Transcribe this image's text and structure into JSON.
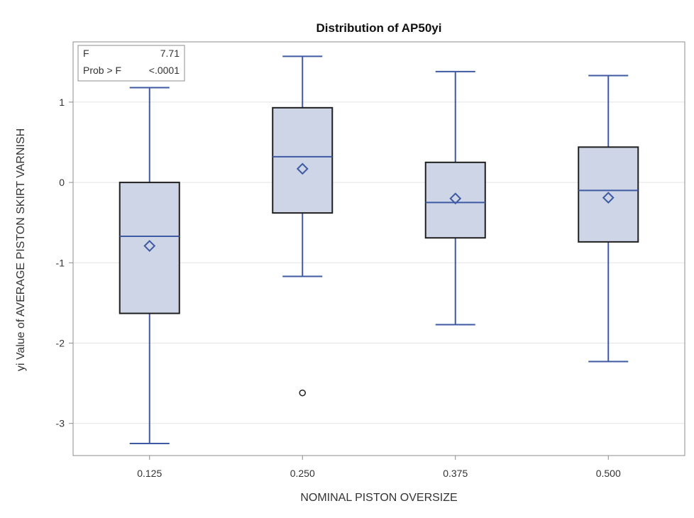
{
  "chart_data": {
    "type": "box",
    "title": "Distribution of AP50yi",
    "xlabel": "NOMINAL PISTON OVERSIZE",
    "ylabel": "yi Value of AVERAGE PISTON SKIRT VARNISH",
    "ylim": [
      -3.4,
      1.75
    ],
    "yticks": [
      1,
      0,
      -1,
      -2,
      -3
    ],
    "ytick_labels": [
      "1",
      "0",
      "-1",
      "-2",
      "-3"
    ],
    "grid": "horizontal",
    "stats_box": {
      "rows": [
        {
          "label": "F",
          "value": "7.71"
        },
        {
          "label": "Prob > F",
          "value": "<.0001"
        }
      ]
    },
    "categories": [
      "0.125",
      "0.250",
      "0.375",
      "0.500"
    ],
    "boxes": [
      {
        "category": "0.125",
        "min": -3.25,
        "q1": -1.63,
        "median": -0.67,
        "q3": 0.0,
        "max": 1.18,
        "mean": -0.79,
        "outliers": []
      },
      {
        "category": "0.250",
        "min": -1.17,
        "q1": -0.38,
        "median": 0.32,
        "q3": 0.93,
        "max": 1.57,
        "mean": 0.17,
        "outliers": [
          -2.62
        ]
      },
      {
        "category": "0.375",
        "min": -1.77,
        "q1": -0.69,
        "median": -0.25,
        "q3": 0.25,
        "max": 1.38,
        "mean": -0.2,
        "outliers": []
      },
      {
        "category": "0.500",
        "min": -2.23,
        "q1": -0.74,
        "median": -0.1,
        "q3": 0.44,
        "max": 1.33,
        "mean": -0.19,
        "outliers": []
      }
    ],
    "colors": {
      "box_fill": "#cdd5e6",
      "box_edge": "#1f1f1f",
      "whisker": "#3e5aa3",
      "median": "#3e5aa3",
      "mean_marker": "#3e5aa3",
      "outlier": "#1f1f1f",
      "grid": "#e3e3e3",
      "frame": "#8c8c8c"
    }
  }
}
